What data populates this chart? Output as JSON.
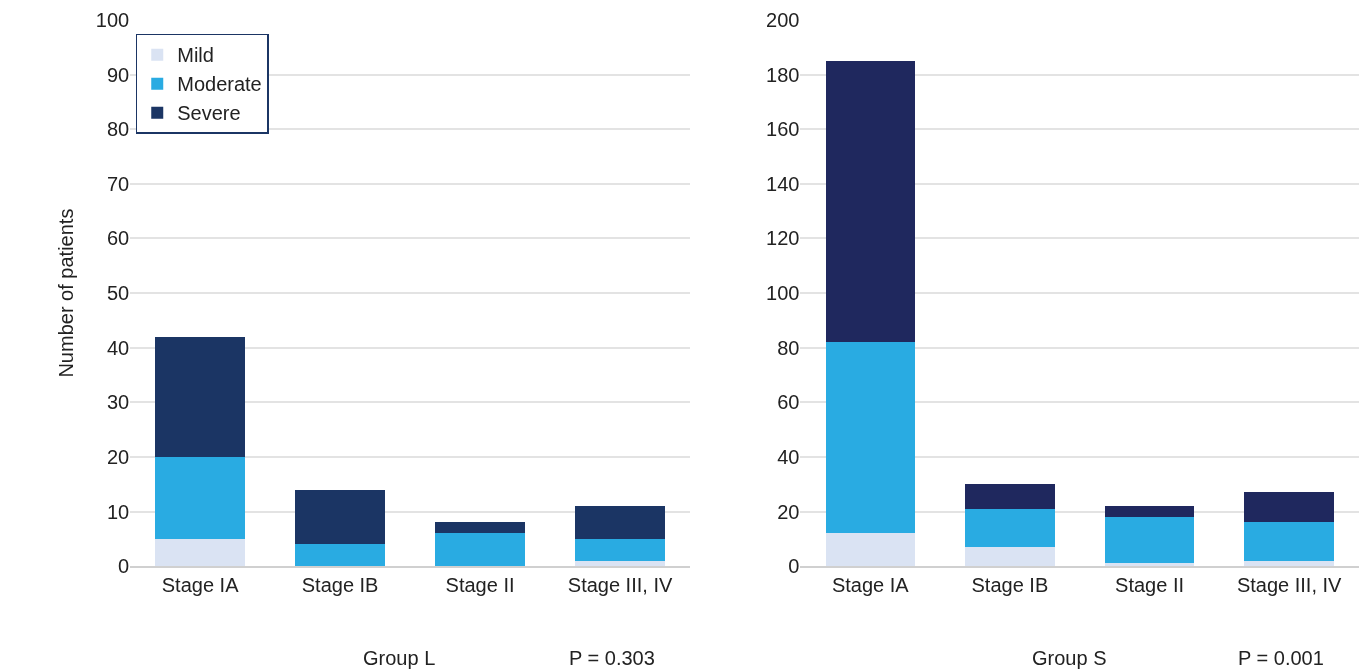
{
  "chart_data": [
    {
      "type": "bar",
      "stacked": true,
      "ylabel": "Number of patients",
      "categories": [
        "Stage IA",
        "Stage IB",
        "Stage II",
        "Stage III, IV"
      ],
      "ylim": [
        0,
        100
      ],
      "yticks": [
        0,
        10,
        20,
        30,
        40,
        50,
        60,
        70,
        80,
        90,
        100
      ],
      "grid": "y",
      "legend": "top left",
      "series": [
        {
          "name": "Mild",
          "color": "#dae3f3",
          "values": [
            5,
            0,
            0,
            1
          ]
        },
        {
          "name": "Moderate",
          "color": "#29abe2",
          "values": [
            15,
            4,
            6,
            4
          ]
        },
        {
          "name": "Severe",
          "color": "#1b3564",
          "values": [
            22,
            10,
            2,
            6
          ]
        }
      ],
      "annotations": [
        "Group L",
        "P = 0.303"
      ]
    },
    {
      "type": "bar",
      "stacked": true,
      "categories": [
        "Stage IA",
        "Stage IB",
        "Stage II",
        "Stage III, IV"
      ],
      "ylim": [
        0,
        200
      ],
      "yticks": [
        0,
        20,
        40,
        60,
        80,
        100,
        120,
        140,
        160,
        180,
        200
      ],
      "grid": "y",
      "legend": false,
      "series": [
        {
          "color": "#dae3f3",
          "values": [
            12,
            7,
            1,
            2
          ]
        },
        {
          "color": "#29abe2",
          "values": [
            70,
            14,
            17,
            14
          ]
        },
        {
          "color": "#1f285e",
          "values": [
            103,
            9,
            4,
            11
          ]
        }
      ],
      "annotations": [
        "Group S",
        "P = 0.001"
      ]
    }
  ]
}
